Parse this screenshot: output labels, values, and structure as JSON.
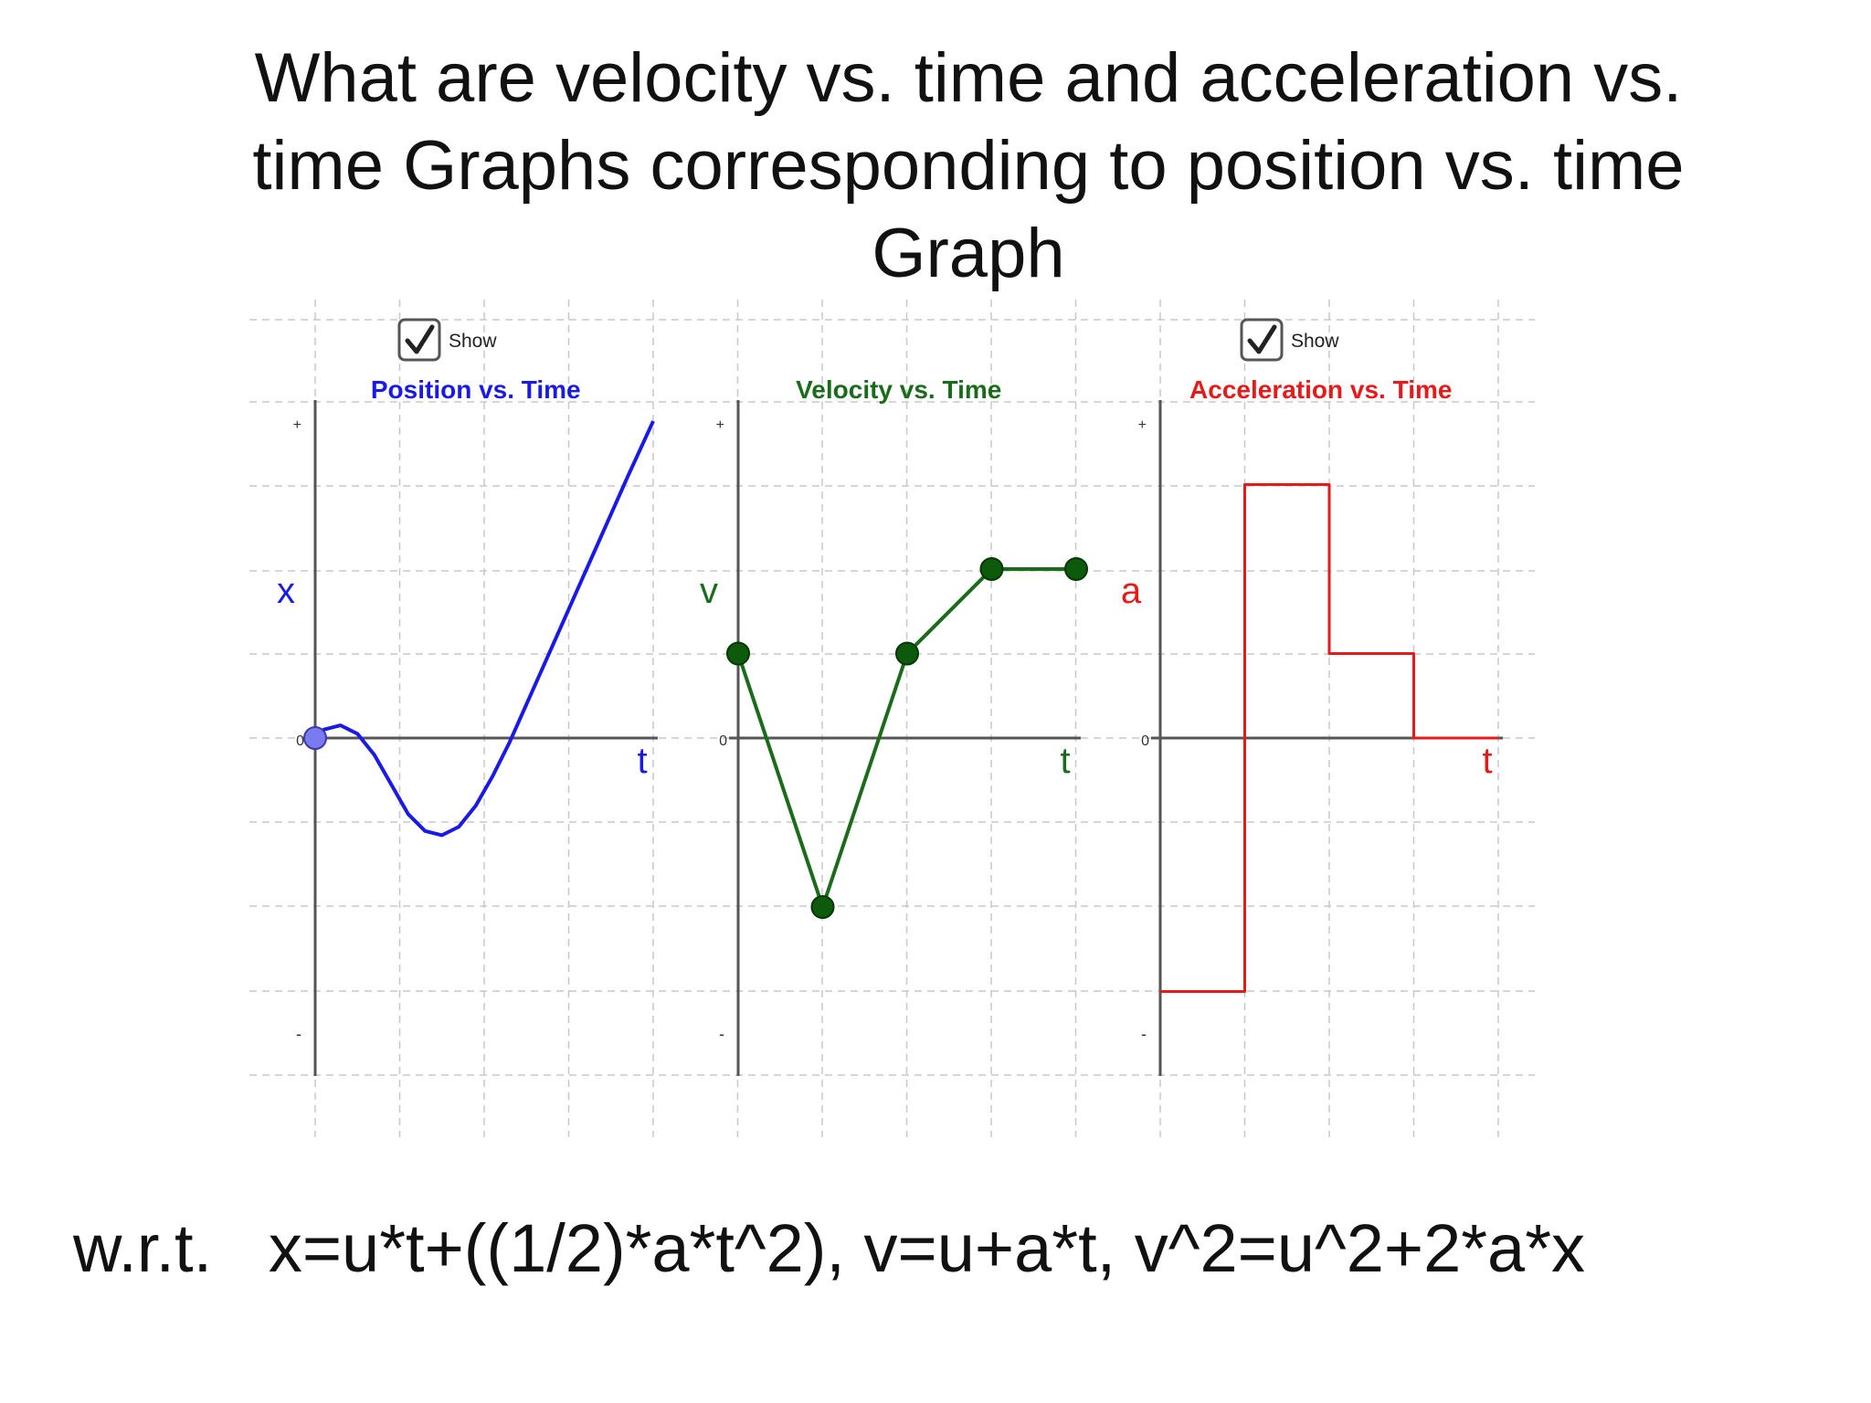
{
  "title": {
    "line1": "What are velocity vs. time and acceleration vs.",
    "line2": "time Graphs corresponding to position vs. time",
    "line3": "Graph"
  },
  "footer": {
    "prefix": "w.r.t.",
    "equations": "x=u*t+((1/2)*a*t^2), v=u+a*t, v^2=u^2+2*a*x"
  },
  "checkboxes": [
    {
      "label": "Show",
      "checked": true
    },
    {
      "label": "Show",
      "checked": true
    }
  ],
  "colors": {
    "position": "#1a1ae6",
    "velocity": "#1a6b1a",
    "acceleration": "#e61a1a",
    "grid": "#c8c8c8",
    "axis": "#555555"
  },
  "chart_data": [
    {
      "type": "line",
      "title": "Position vs. Time",
      "xlabel": "t",
      "ylabel": "x",
      "ytick_labels": {
        "plus": "+",
        "zero": "0",
        "minus": "-"
      },
      "xlim": [
        0,
        4
      ],
      "ylim": [
        -3.5,
        3.75
      ],
      "points": [
        [
          0,
          0
        ],
        [
          0.1,
          0.1
        ],
        [
          0.3,
          0.15
        ],
        [
          0.5,
          0.05
        ],
        [
          0.7,
          -0.2
        ],
        [
          0.9,
          -0.55
        ],
        [
          1.1,
          -0.9
        ],
        [
          1.3,
          -1.1
        ],
        [
          1.5,
          -1.15
        ],
        [
          1.7,
          -1.05
        ],
        [
          1.9,
          -0.8
        ],
        [
          2.1,
          -0.45
        ],
        [
          2.3,
          -0.05
        ],
        [
          2.5,
          0.4
        ],
        [
          2.7,
          0.85
        ],
        [
          2.9,
          1.3
        ],
        [
          3.1,
          1.75
        ],
        [
          3.3,
          2.2
        ],
        [
          3.5,
          2.65
        ],
        [
          3.7,
          3.1
        ],
        [
          4,
          3.75
        ]
      ],
      "marker": {
        "x": 0,
        "y": 0
      }
    },
    {
      "type": "line",
      "title": "Velocity vs. Time",
      "xlabel": "t",
      "ylabel": "v",
      "ytick_labels": {
        "plus": "+",
        "zero": "0",
        "minus": "-"
      },
      "xlim": [
        0,
        4
      ],
      "ylim": [
        -3.5,
        3.75
      ],
      "points": [
        [
          0,
          1
        ],
        [
          1,
          -2
        ],
        [
          2,
          1
        ],
        [
          3,
          2
        ],
        [
          4,
          2
        ]
      ]
    },
    {
      "type": "line",
      "title": "Acceleration vs. Time",
      "xlabel": "t",
      "ylabel": "a",
      "ytick_labels": {
        "plus": "+",
        "zero": "0",
        "minus": "-"
      },
      "xlim": [
        0,
        4
      ],
      "ylim": [
        -3.5,
        3.75
      ],
      "step": true,
      "points": [
        [
          0,
          -3
        ],
        [
          1,
          -3
        ],
        [
          1,
          3
        ],
        [
          2,
          3
        ],
        [
          2,
          1
        ],
        [
          3,
          1
        ],
        [
          3,
          0
        ],
        [
          4,
          0
        ]
      ]
    }
  ]
}
